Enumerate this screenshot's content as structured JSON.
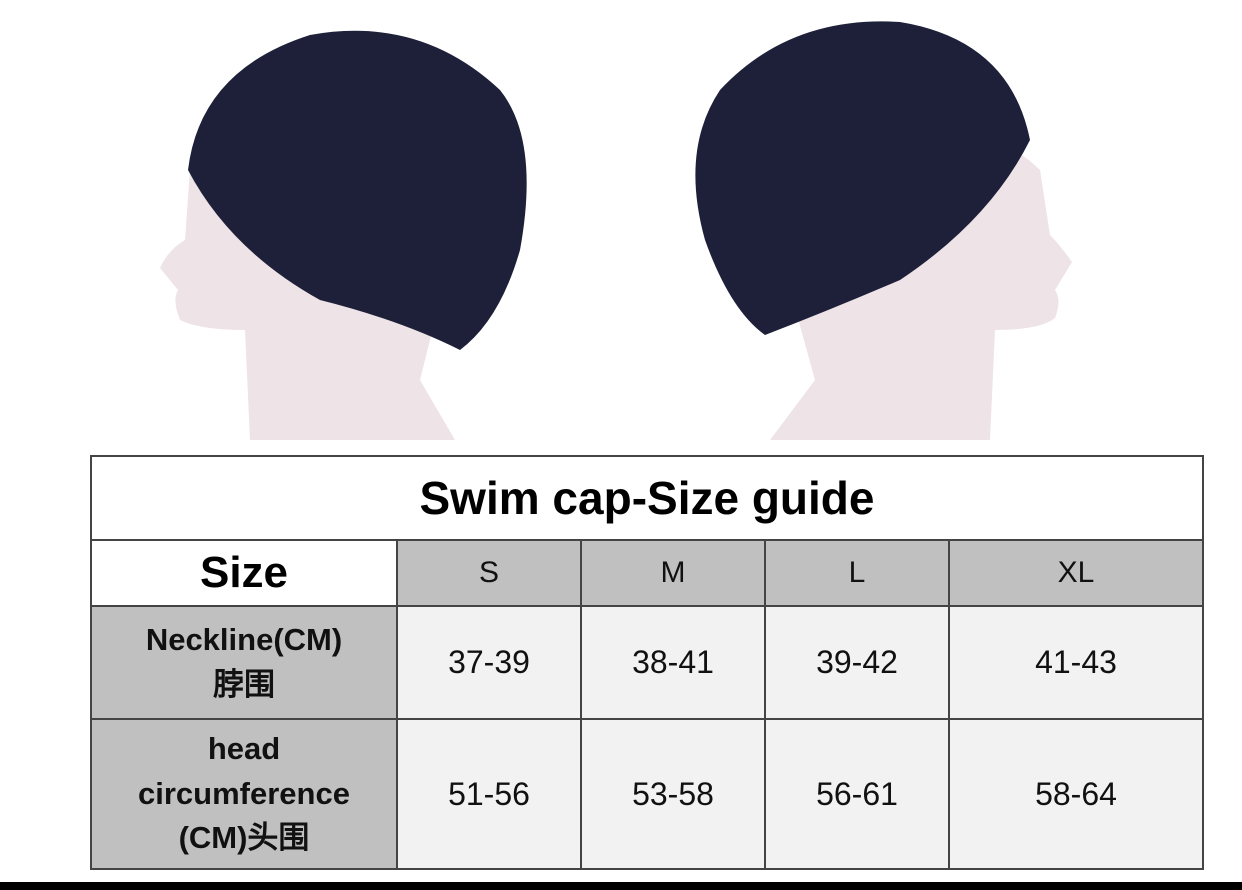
{
  "table": {
    "title": "Swim cap-Size guide",
    "header": [
      "Size",
      "S",
      "M",
      "L",
      "XL"
    ],
    "rows": [
      {
        "label": [
          "Neckline(CM)",
          "脖围"
        ],
        "cells": [
          "37-39",
          "38-41",
          "39-42",
          "41-43"
        ]
      },
      {
        "label": [
          "head",
          "circumference",
          "(CM)头围"
        ],
        "cells": [
          "51-56",
          "53-58",
          "56-61",
          "58-64"
        ]
      }
    ]
  }
}
